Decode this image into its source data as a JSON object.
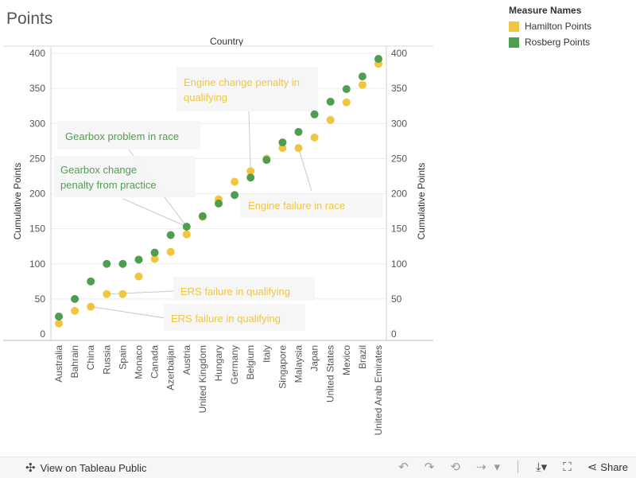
{
  "title": "Points",
  "legend": {
    "title": "Measure Names",
    "items": [
      {
        "label": "Hamilton Points",
        "color": "#f0c641"
      },
      {
        "label": "Rosberg Points",
        "color": "#4f9e4f"
      }
    ]
  },
  "chart_data": {
    "type": "scatter",
    "xlabel": "Country",
    "ylabel": "Cumulative Points",
    "ylim": [
      0,
      400
    ],
    "yticks": [
      0,
      50,
      100,
      150,
      200,
      250,
      300,
      350,
      400
    ],
    "grid": true,
    "categories": [
      "Australia",
      "Bahrain",
      "China",
      "Russia",
      "Spain",
      "Monaco",
      "Canada",
      "Azerbaijan",
      "Austria",
      "United Kingdom",
      "Hungary",
      "Germany",
      "Belgium",
      "Italy",
      "Singapore",
      "Malaysia",
      "Japan",
      "United States",
      "Mexico",
      "Brazil",
      "United Arab Emirates"
    ],
    "series": [
      {
        "name": "Hamilton Points",
        "color": "#f0c641",
        "values": [
          15,
          33,
          39,
          57,
          57,
          82,
          107,
          117,
          142,
          167,
          192,
          217,
          232,
          250,
          265,
          265,
          280,
          305,
          330,
          355,
          385
        ]
      },
      {
        "name": "Rosberg Points",
        "color": "#4f9e4f",
        "values": [
          25,
          50,
          75,
          100,
          100,
          106,
          116,
          141,
          153,
          168,
          186,
          198,
          223,
          248,
          273,
          288,
          313,
          331,
          349,
          367,
          392
        ]
      }
    ],
    "annotations": [
      {
        "text": "Engine change penalty in qualifying",
        "series": "Hamilton Points",
        "category": "Belgium",
        "color": "#f0c641"
      },
      {
        "text": "Engine failure in race",
        "series": "Hamilton Points",
        "category": "Malaysia",
        "color": "#f0c641"
      },
      {
        "text": "Gearbox problem in race",
        "series": "Rosberg Points",
        "category": "Austria",
        "color": "#4f9e4f"
      },
      {
        "text": "Gearbox change penalty from practice",
        "series": "Rosberg Points",
        "category": "Austria",
        "color": "#4f9e4f"
      },
      {
        "text": "ERS failure in qualifying",
        "series": "Hamilton Points",
        "category": "Russia",
        "color": "#f0c641"
      },
      {
        "text": "ERS failure in qualifying",
        "series": "Hamilton Points",
        "category": "China",
        "color": "#f0c641"
      }
    ]
  },
  "toolbar": {
    "view_label": "View on Tableau Public",
    "share_label": "Share"
  }
}
